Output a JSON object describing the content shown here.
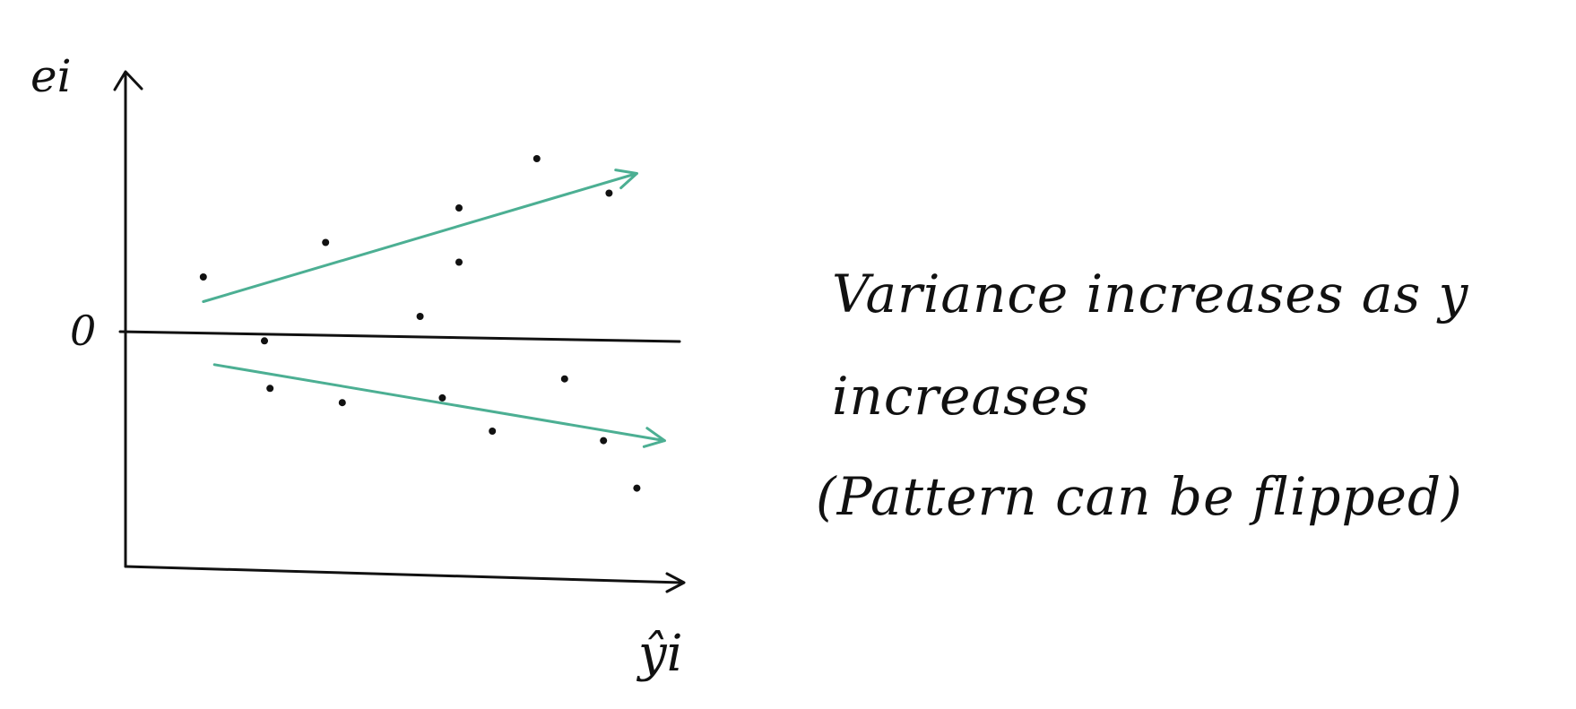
{
  "chart_data": {
    "type": "scatter",
    "ylabel": "ei",
    "xlabel": "ŷi",
    "zero_label": "0",
    "xlim": [
      0,
      10
    ],
    "ylim": [
      -5,
      5
    ],
    "grid": false,
    "points": [
      {
        "x": 1.4,
        "y": 1.2
      },
      {
        "x": 3.6,
        "y": 1.9
      },
      {
        "x": 6.0,
        "y": 2.6
      },
      {
        "x": 7.4,
        "y": 3.6
      },
      {
        "x": 8.7,
        "y": 2.9
      },
      {
        "x": 6.0,
        "y": 1.5
      },
      {
        "x": 5.3,
        "y": 0.4
      },
      {
        "x": 2.5,
        "y": -0.1
      },
      {
        "x": 2.6,
        "y": -1.1
      },
      {
        "x": 3.9,
        "y": -1.4
      },
      {
        "x": 5.7,
        "y": -1.3
      },
      {
        "x": 7.9,
        "y": -0.9
      },
      {
        "x": 6.6,
        "y": -2.0
      },
      {
        "x": 8.6,
        "y": -2.2
      },
      {
        "x": 9.2,
        "y": -3.2
      }
    ],
    "trend_lines": [
      {
        "from": [
          1.4,
          0.7
        ],
        "to": [
          9.2,
          3.3
        ]
      },
      {
        "from": [
          1.6,
          -0.6
        ],
        "to": [
          9.7,
          -2.2
        ]
      }
    ],
    "annotations": [
      "Variance increases as y",
      "increases",
      "(Pattern can be flipped)"
    ]
  },
  "colors": {
    "ink": "#111111",
    "trend": "#4caf93"
  }
}
